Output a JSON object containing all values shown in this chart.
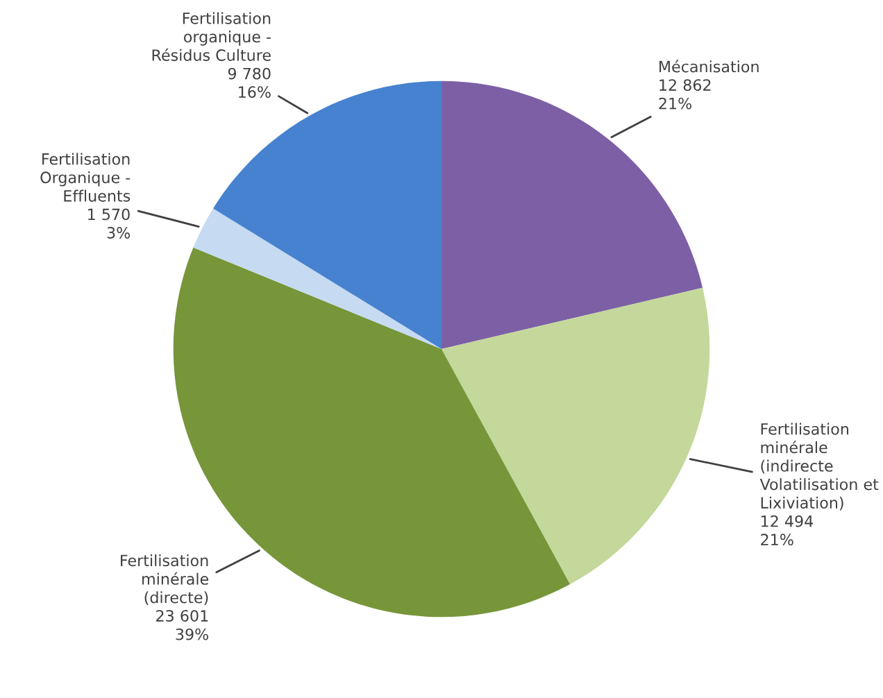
{
  "chart_data": {
    "type": "pie",
    "categories": [
      "Mécanisation",
      "Fertilisation\nminérale\n(indirecte\nVolatilisation et\nLixiviation)",
      "Fertilisation\nminérale\n(directe)",
      "Fertilisation\nOrganique -\nEffluents",
      "Fertilisation\norganique -\nRésidus Culture"
    ],
    "values": [
      12862,
      12494,
      23601,
      1570,
      9780
    ],
    "value_labels": [
      "12 862\n21%",
      "12 494\n21%",
      "23 601\n39%",
      "1 570\n3%",
      "9 780\n16%"
    ],
    "colors": [
      "#7d5fa6",
      "#c3d89a",
      "#77963a",
      "#c6daf2",
      "#4682cf"
    ]
  }
}
